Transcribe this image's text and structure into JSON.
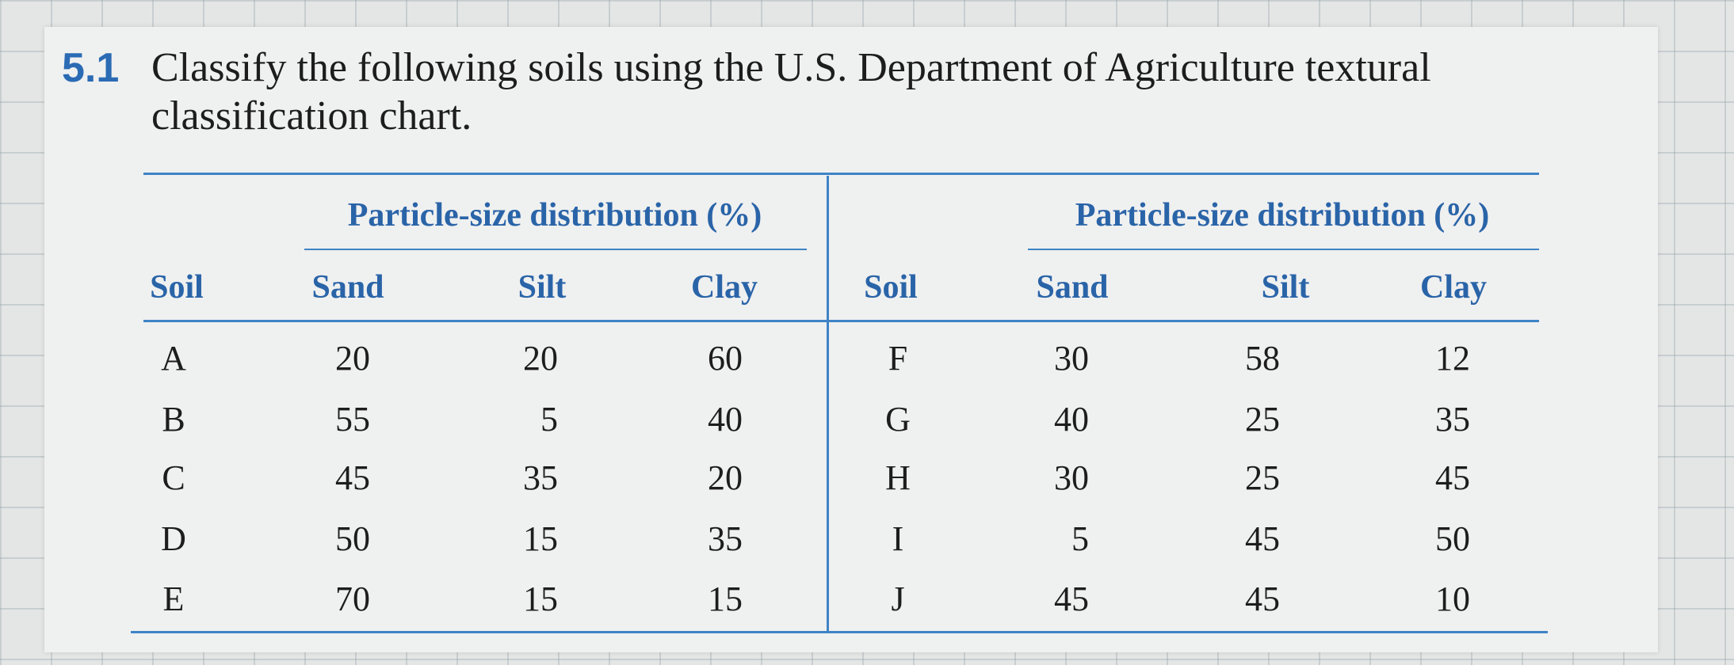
{
  "problem": {
    "number": "5.1",
    "lines": [
      "Classify the following soils using the U.S. Department of Agriculture textural",
      "classification chart."
    ]
  },
  "table": {
    "group_headers": [
      "Particle-size distribution (%)",
      "Particle-size distribution (%)"
    ],
    "columns": [
      "Soil",
      "Sand",
      "Silt",
      "Clay",
      "Soil",
      "Sand",
      "Silt",
      "Clay"
    ],
    "rows": [
      [
        "A",
        20,
        20,
        60,
        "F",
        30,
        58,
        12
      ],
      [
        "B",
        55,
        5,
        40,
        "G",
        40,
        25,
        35
      ],
      [
        "C",
        45,
        35,
        20,
        "H",
        30,
        25,
        45
      ],
      [
        "D",
        50,
        15,
        35,
        "I",
        5,
        45,
        50
      ],
      [
        "E",
        70,
        15,
        15,
        "J",
        45,
        45,
        10
      ]
    ]
  }
}
